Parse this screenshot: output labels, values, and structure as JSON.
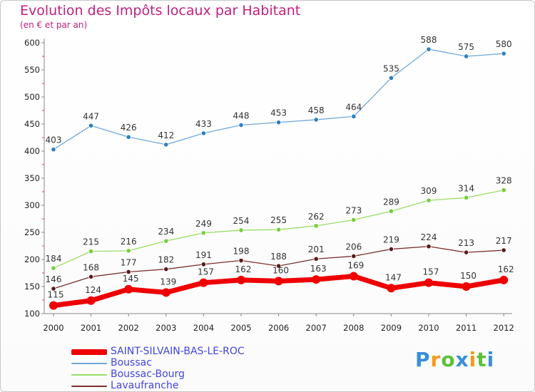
{
  "title": "Evolution des Impôts locaux par Habitant",
  "subtitle": "(en € et par an)",
  "logo": {
    "text": "Proxiti",
    "letters": [
      {
        "ch": "P",
        "color": "#3a8fd8"
      },
      {
        "ch": "r",
        "color": "#f39a1e"
      },
      {
        "ch": "o",
        "color": "#5bbf3a"
      },
      {
        "ch": "x",
        "color": "#3a8fd8"
      },
      {
        "ch": "i",
        "color": "#f39a1e"
      },
      {
        "ch": "t",
        "color": "#5bbf3a"
      },
      {
        "ch": "i",
        "color": "#3a8fd8"
      }
    ]
  },
  "chart_data": {
    "type": "line",
    "title": "Evolution des Impôts locaux par Habitant",
    "subtitle": "(en € et par an)",
    "x": [
      2000,
      2001,
      2002,
      2003,
      2004,
      2005,
      2006,
      2007,
      2008,
      2009,
      2010,
      2011,
      2012
    ],
    "ylim": [
      100,
      600
    ],
    "yticks": [
      100,
      150,
      200,
      250,
      300,
      350,
      400,
      450,
      500,
      550,
      600
    ],
    "grid": false,
    "legend_position": "bottom-left",
    "series": [
      {
        "name": "SAINT-SILVAIN-BAS-LE-ROC",
        "color": "#ee0000",
        "marker_color": "#ee0000",
        "width": 7,
        "values": [
          115,
          124,
          145,
          139,
          157,
          162,
          160,
          163,
          169,
          147,
          157,
          150,
          162
        ]
      },
      {
        "name": "Boussac",
        "color": "#6fa8dc",
        "marker_color": "#2e7fc1",
        "width": 1.3,
        "values": [
          403,
          447,
          426,
          412,
          433,
          448,
          453,
          458,
          464,
          535,
          588,
          575,
          580
        ]
      },
      {
        "name": "Boussac-Bourg",
        "color": "#99dd66",
        "marker_color": "#7acc3a",
        "width": 1.3,
        "values": [
          184,
          215,
          216,
          234,
          249,
          254,
          255,
          262,
          273,
          289,
          309,
          314,
          328
        ]
      },
      {
        "name": "Lavaufranche",
        "color": "#7a3030",
        "marker_color": "#5a1a1a",
        "width": 1.3,
        "values": [
          146,
          168,
          177,
          182,
          191,
          198,
          188,
          201,
          206,
          219,
          224,
          213,
          217
        ]
      }
    ]
  }
}
